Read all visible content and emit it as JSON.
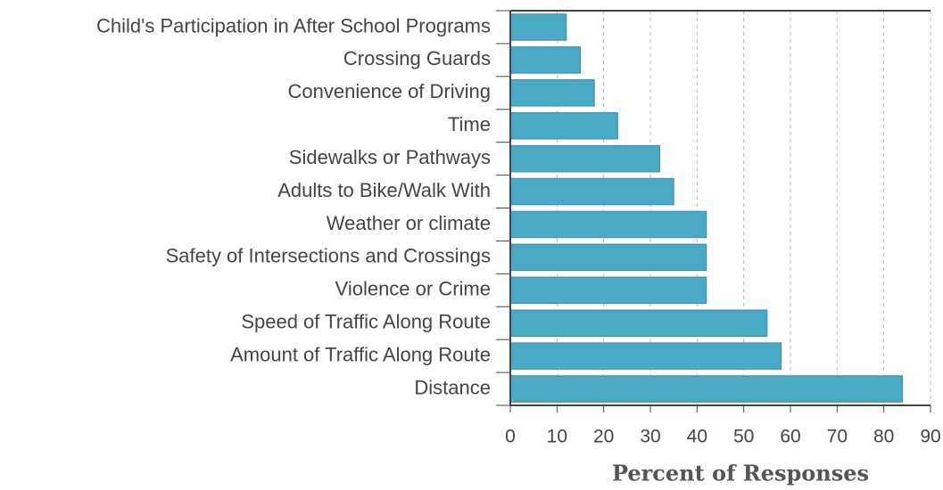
{
  "chart_data": {
    "type": "bar",
    "orientation": "horizontal",
    "x_label": "Percent of Responses",
    "categories": [
      "Child's Participation in After School Programs",
      "Crossing Guards",
      "Convenience of Driving",
      "Time",
      "Sidewalks or Pathways",
      "Adults to Bike/Walk With",
      "Weather or climate",
      "Safety of Intersections and Crossings",
      "Violence or Crime",
      "Speed of Traffic Along Route",
      "Amount of Traffic Along Route",
      "Distance"
    ],
    "values": [
      12,
      15,
      18,
      23,
      32,
      35,
      42,
      42,
      42,
      55,
      58,
      84
    ],
    "color": "#4aa9c5",
    "xlim": [
      0,
      90
    ],
    "xticks": [
      0,
      10,
      20,
      30,
      40,
      50,
      60,
      70,
      80,
      90
    ],
    "grid": true
  }
}
